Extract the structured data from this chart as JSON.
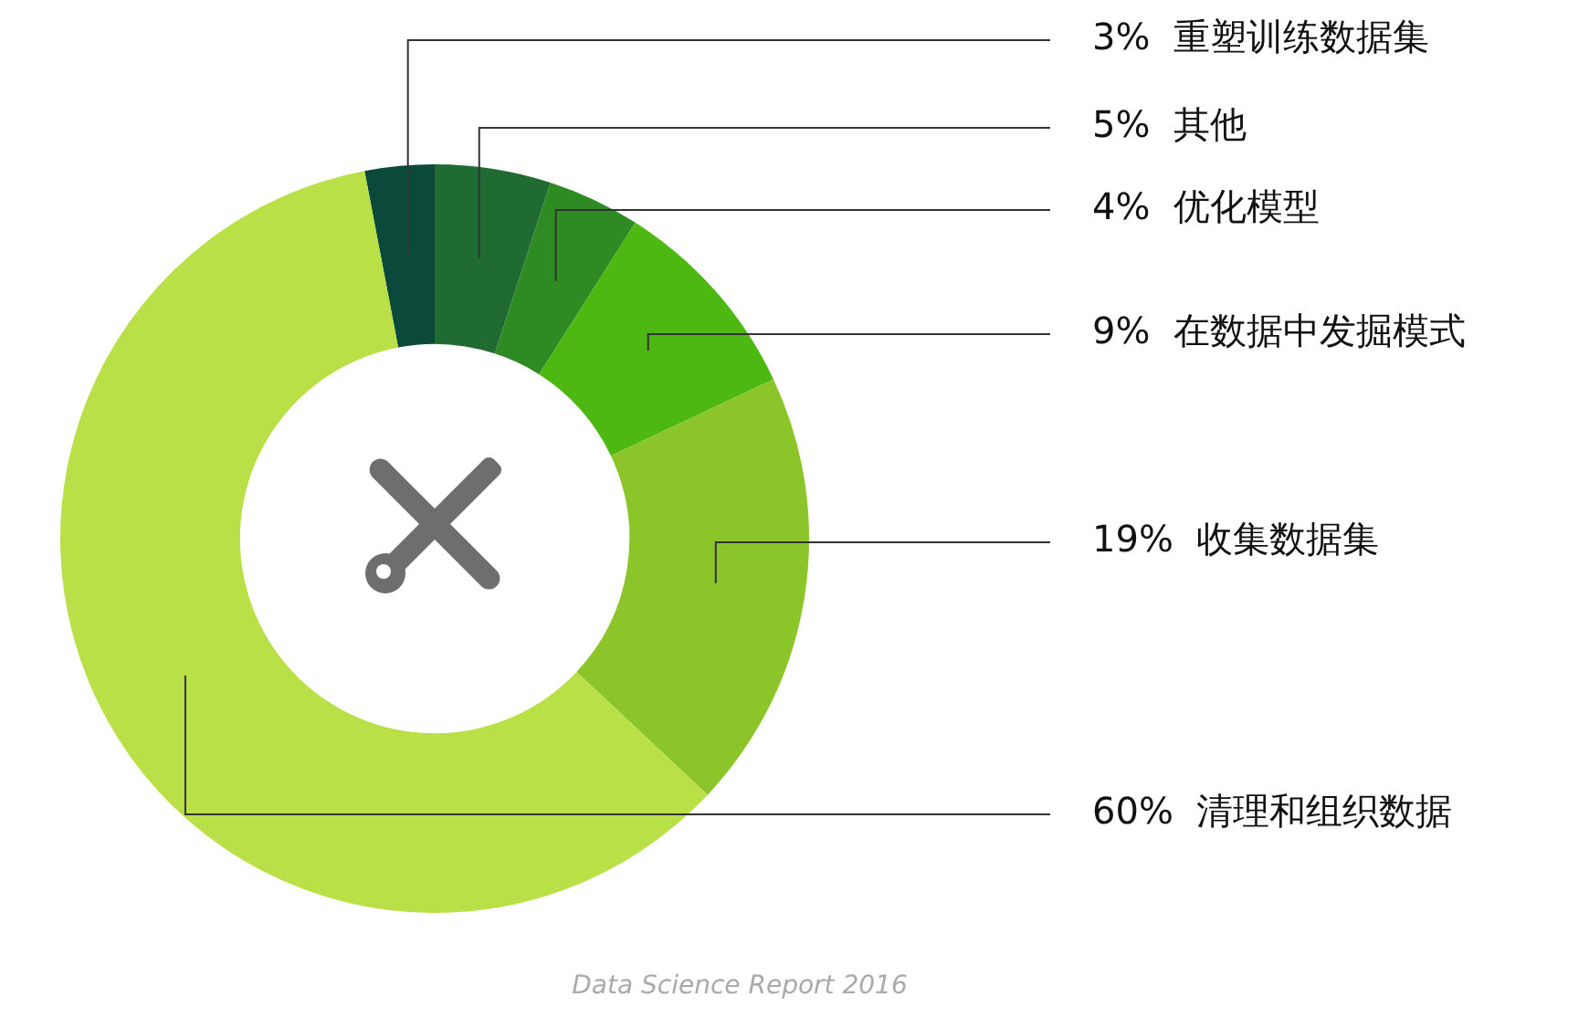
{
  "chart_data": {
    "type": "donut",
    "categories": [
      "重塑训练数据集",
      "其他",
      "优化模型",
      "在数据中发掘模式",
      "收集数据集",
      "清理和组织数据"
    ],
    "values": [
      3,
      5,
      4,
      9,
      19,
      60
    ],
    "value_labels": [
      "3%",
      "5%",
      "4%",
      "9%",
      "19%",
      "60%"
    ],
    "colors": [
      "#0b4a3a",
      "#1f6b31",
      "#2e8a22",
      "#4cb811",
      "#8cc52a",
      "#b9e046"
    ],
    "legend": false,
    "annotations": [
      "Data Science Report 2016"
    ]
  }
}
